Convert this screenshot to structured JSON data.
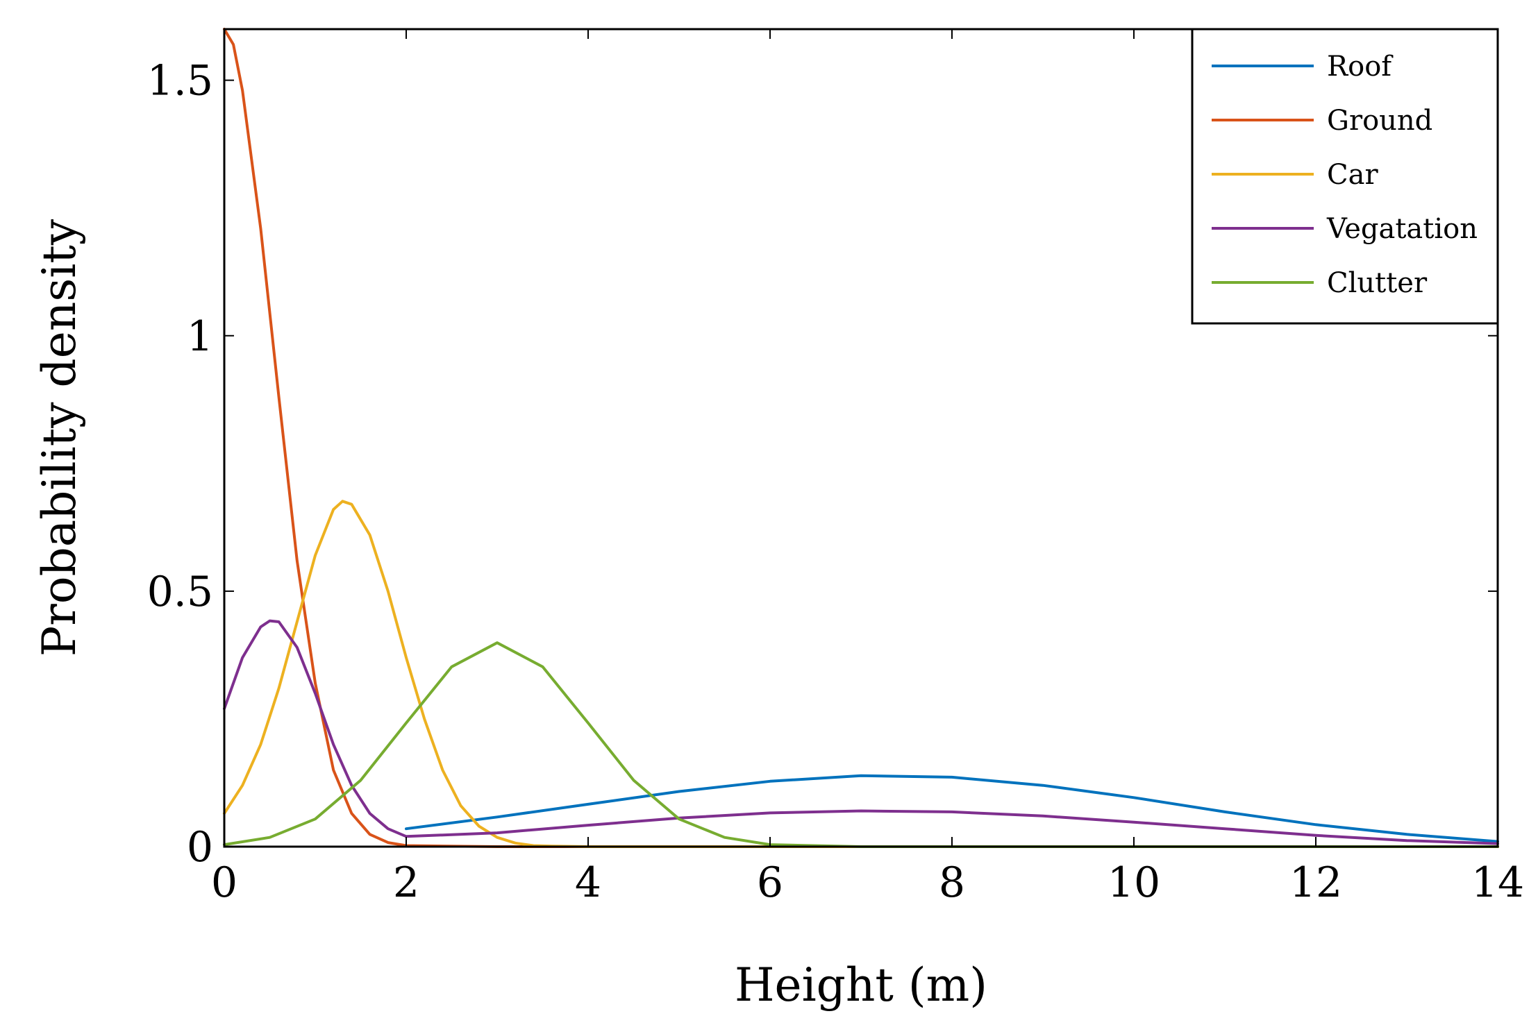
{
  "chart_data": {
    "type": "line",
    "title": "",
    "xlabel": "Height (m)",
    "ylabel": "Probability density",
    "xlim": [
      0,
      14
    ],
    "ylim": [
      0,
      1.6
    ],
    "xticks": [
      0,
      2,
      4,
      6,
      8,
      10,
      12,
      14
    ],
    "xtick_labels": [
      "0",
      "2",
      "4",
      "6",
      "8",
      "10",
      "12",
      "14"
    ],
    "yticks": [
      0,
      0.5,
      1,
      1.5
    ],
    "ytick_labels": [
      "0",
      "0.5",
      "1",
      "1.5"
    ],
    "grid": false,
    "legend_position": "top-right",
    "series": [
      {
        "name": "Roof",
        "color": "#0072BD",
        "x": [
          2,
          3,
          4,
          5,
          6,
          7,
          8,
          9,
          10,
          11,
          12,
          13,
          14
        ],
        "y": [
          0.035,
          0.058,
          0.083,
          0.108,
          0.128,
          0.139,
          0.136,
          0.12,
          0.096,
          0.068,
          0.043,
          0.024,
          0.01
        ]
      },
      {
        "name": "Ground",
        "color": "#D95319",
        "x": [
          0,
          0.1,
          0.2,
          0.4,
          0.6,
          0.8,
          1.0,
          1.2,
          1.4,
          1.6,
          1.8,
          2.0,
          3,
          4,
          6,
          8,
          10,
          12,
          14
        ],
        "y": [
          1.6,
          1.57,
          1.48,
          1.21,
          0.88,
          0.56,
          0.32,
          0.15,
          0.065,
          0.024,
          0.008,
          0.002,
          0,
          0,
          0,
          0,
          0,
          0,
          0
        ]
      },
      {
        "name": "Car",
        "color": "#EDB120",
        "x": [
          0,
          0.2,
          0.4,
          0.6,
          0.8,
          1.0,
          1.2,
          1.3,
          1.4,
          1.6,
          1.8,
          2.0,
          2.2,
          2.4,
          2.6,
          2.8,
          3.0,
          3.2,
          3.4,
          3.6,
          4,
          6,
          8,
          10,
          12,
          14
        ],
        "y": [
          0.065,
          0.12,
          0.2,
          0.31,
          0.44,
          0.57,
          0.66,
          0.676,
          0.67,
          0.61,
          0.5,
          0.37,
          0.25,
          0.15,
          0.08,
          0.04,
          0.018,
          0.007,
          0.002,
          0.001,
          0,
          0,
          0,
          0,
          0,
          0
        ]
      },
      {
        "name": "Vegatation",
        "color": "#7E2F8E",
        "x": [
          0,
          0.2,
          0.4,
          0.5,
          0.6,
          0.8,
          1.0,
          1.2,
          1.4,
          1.6,
          1.8,
          2,
          3,
          4,
          5,
          6,
          7,
          8,
          9,
          10,
          11,
          12,
          13,
          14
        ],
        "y": [
          0.27,
          0.37,
          0.43,
          0.442,
          0.44,
          0.39,
          0.3,
          0.2,
          0.12,
          0.065,
          0.035,
          0.02,
          0.027,
          0.042,
          0.056,
          0.066,
          0.07,
          0.068,
          0.06,
          0.048,
          0.035,
          0.022,
          0.012,
          0.006
        ]
      },
      {
        "name": "Clutter",
        "color": "#77AC30",
        "x": [
          0,
          0.5,
          1.0,
          1.5,
          2.0,
          2.5,
          3.0,
          3.5,
          4.0,
          4.5,
          5.0,
          5.5,
          6.0,
          7,
          8,
          10,
          12,
          14
        ],
        "y": [
          0.004,
          0.018,
          0.054,
          0.13,
          0.242,
          0.352,
          0.399,
          0.352,
          0.242,
          0.13,
          0.054,
          0.018,
          0.004,
          0,
          0,
          0,
          0,
          0
        ]
      }
    ]
  }
}
